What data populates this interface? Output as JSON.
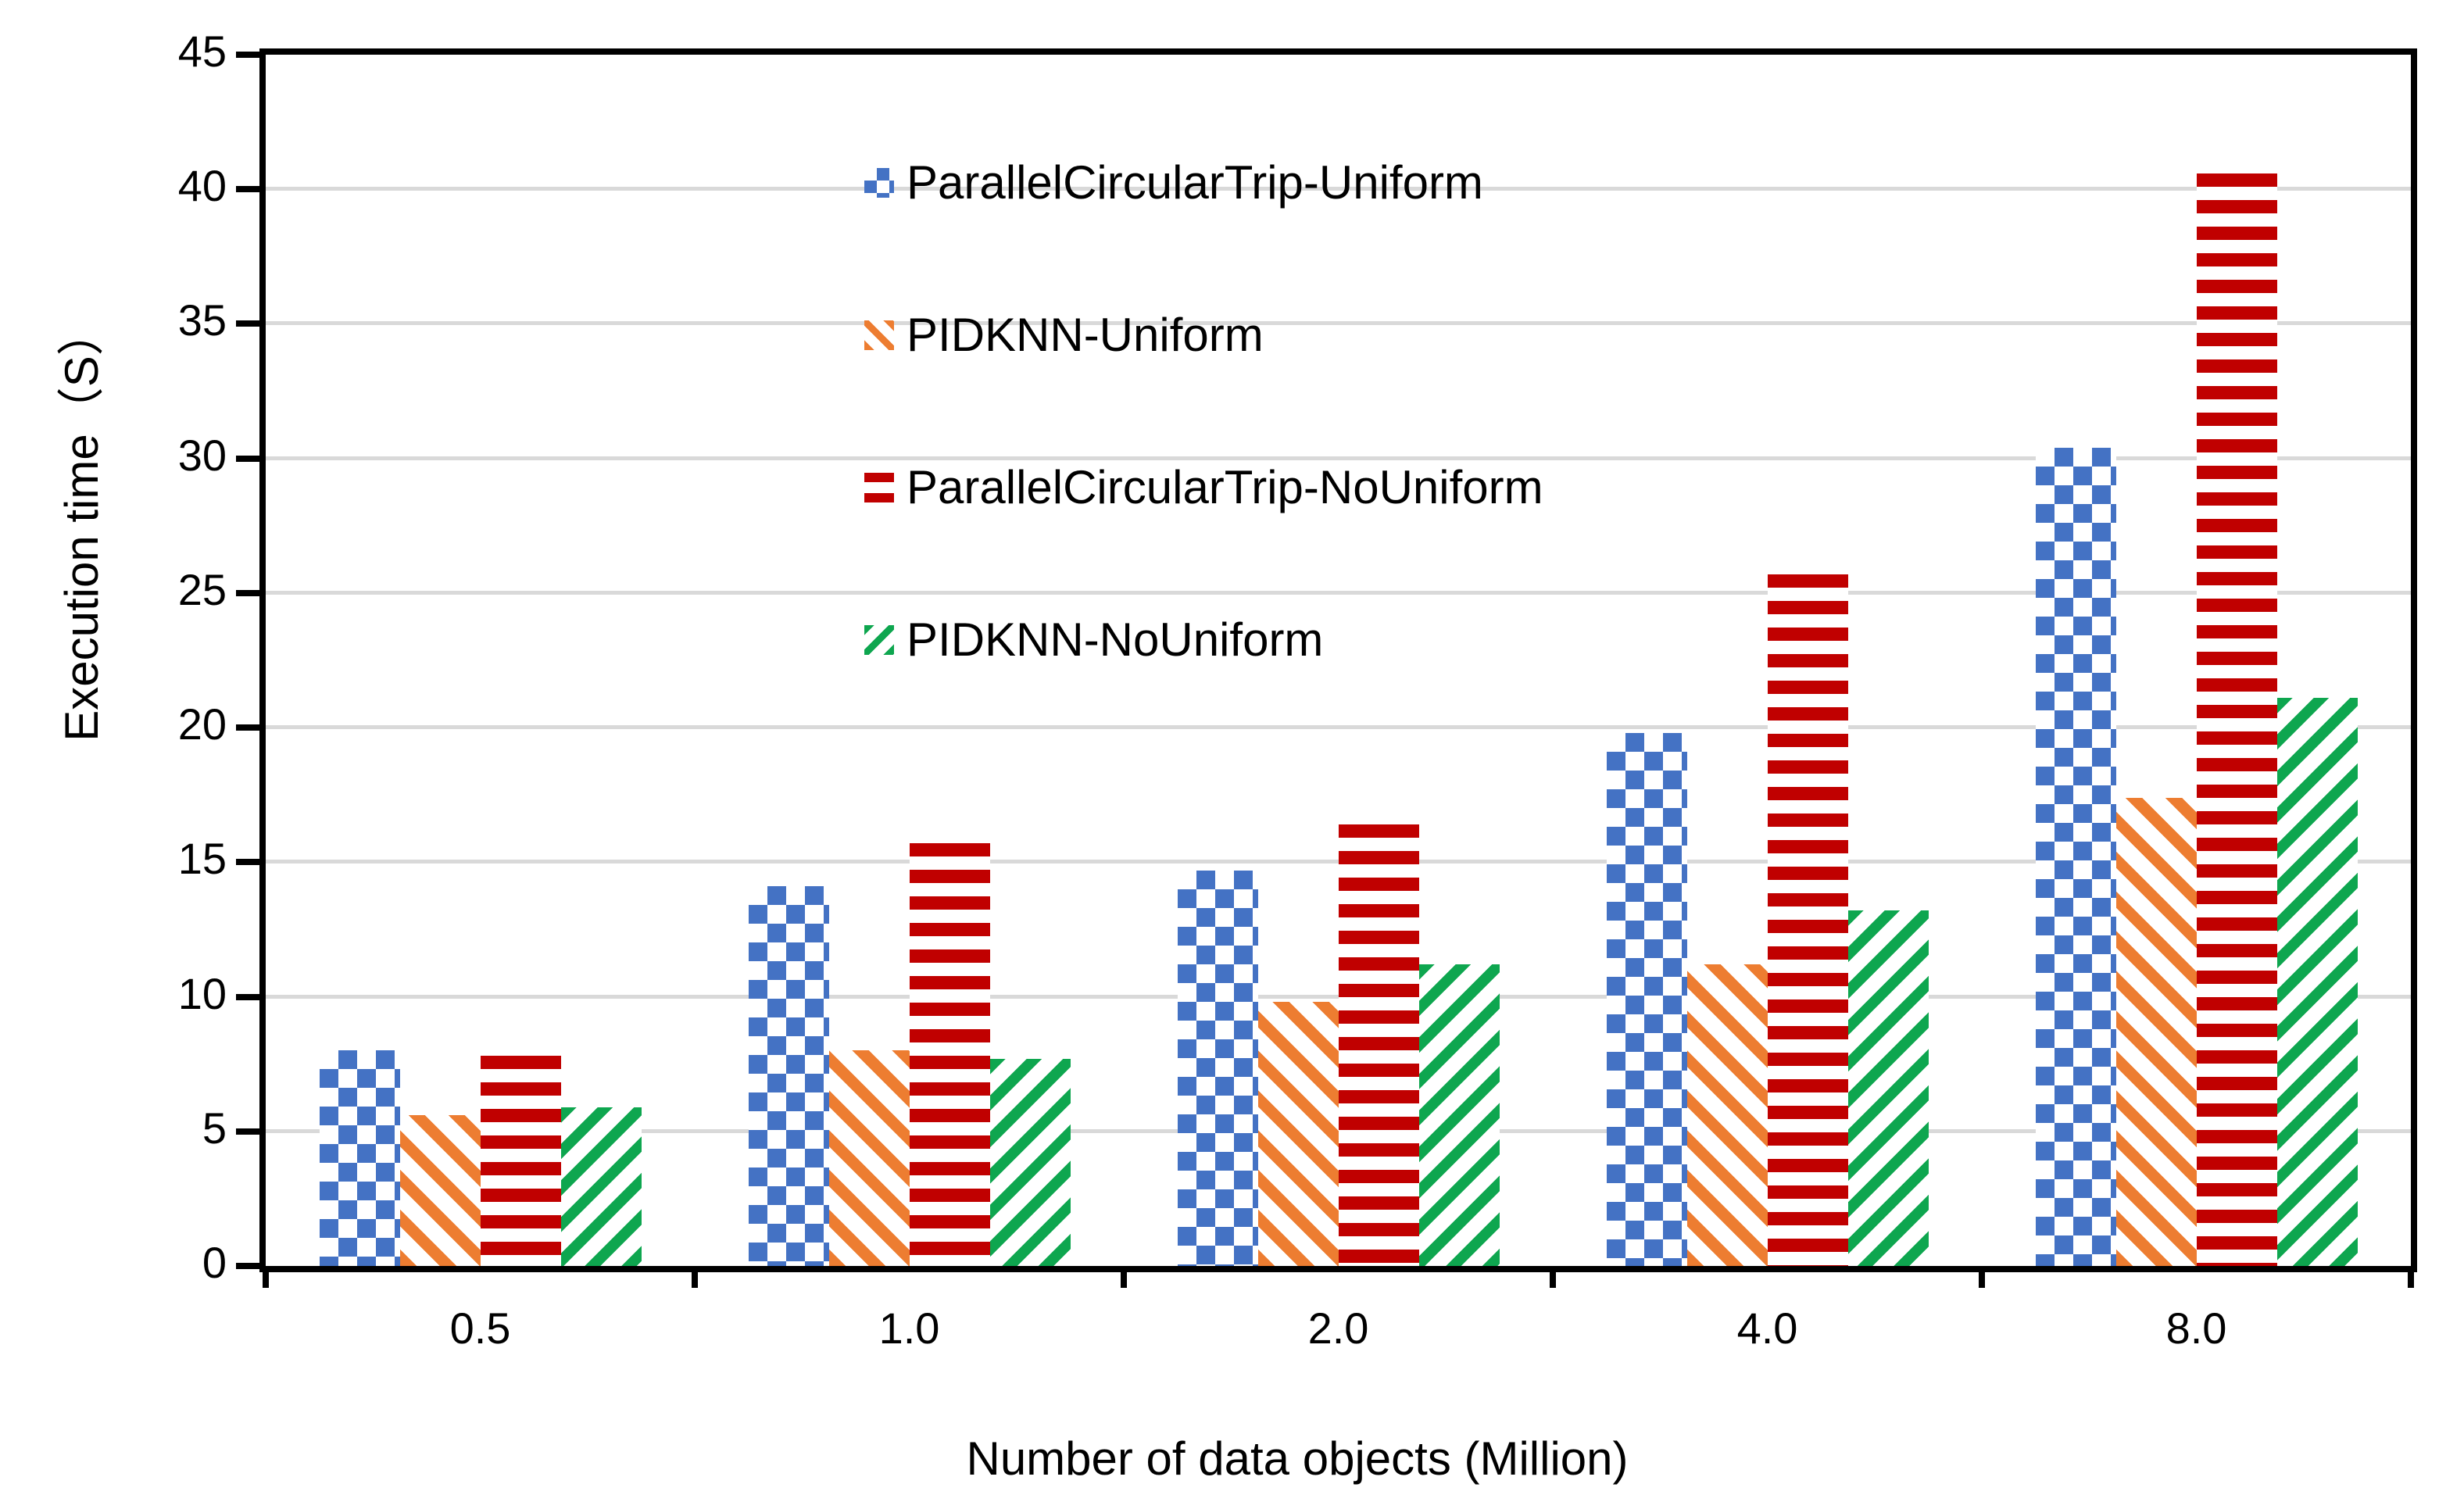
{
  "chart_data": {
    "type": "bar",
    "title": "",
    "xlabel": "Number of data objects (Million)",
    "ylabel": "Execution time（S）",
    "categories": [
      "0.5",
      "1.0",
      "2.0",
      "4.0",
      "8.0"
    ],
    "series": [
      {
        "name": "ParallelCircularTrip-Uniform",
        "color": "#4472C4",
        "pattern": "checker",
        "values": [
          8.0,
          14.1,
          14.7,
          19.8,
          30.4
        ]
      },
      {
        "name": "PIDKNN-Uniform",
        "color": "#ED7D31",
        "pattern": "diagonal-down",
        "values": [
          5.6,
          8.0,
          9.8,
          11.2,
          17.4
        ]
      },
      {
        "name": "ParallelCircularTrip-NoUniform",
        "color": "#C00000",
        "pattern": "horizontal",
        "values": [
          7.8,
          15.7,
          16.4,
          25.7,
          40.6
        ]
      },
      {
        "name": "PIDKNN-NoUniform",
        "color": "#0EA64F",
        "pattern": "diagonal-up",
        "values": [
          5.9,
          7.7,
          11.2,
          13.2,
          21.1
        ]
      }
    ],
    "ylim": [
      0,
      45
    ],
    "ytick_step": 5,
    "y_ticks": [
      "0",
      "5",
      "10",
      "15",
      "20",
      "25",
      "30",
      "35",
      "40",
      "45"
    ],
    "grid": true,
    "gridline_color": "#D9D9D9",
    "axis_color": "#000000",
    "legend_position": "inside-top-left"
  }
}
